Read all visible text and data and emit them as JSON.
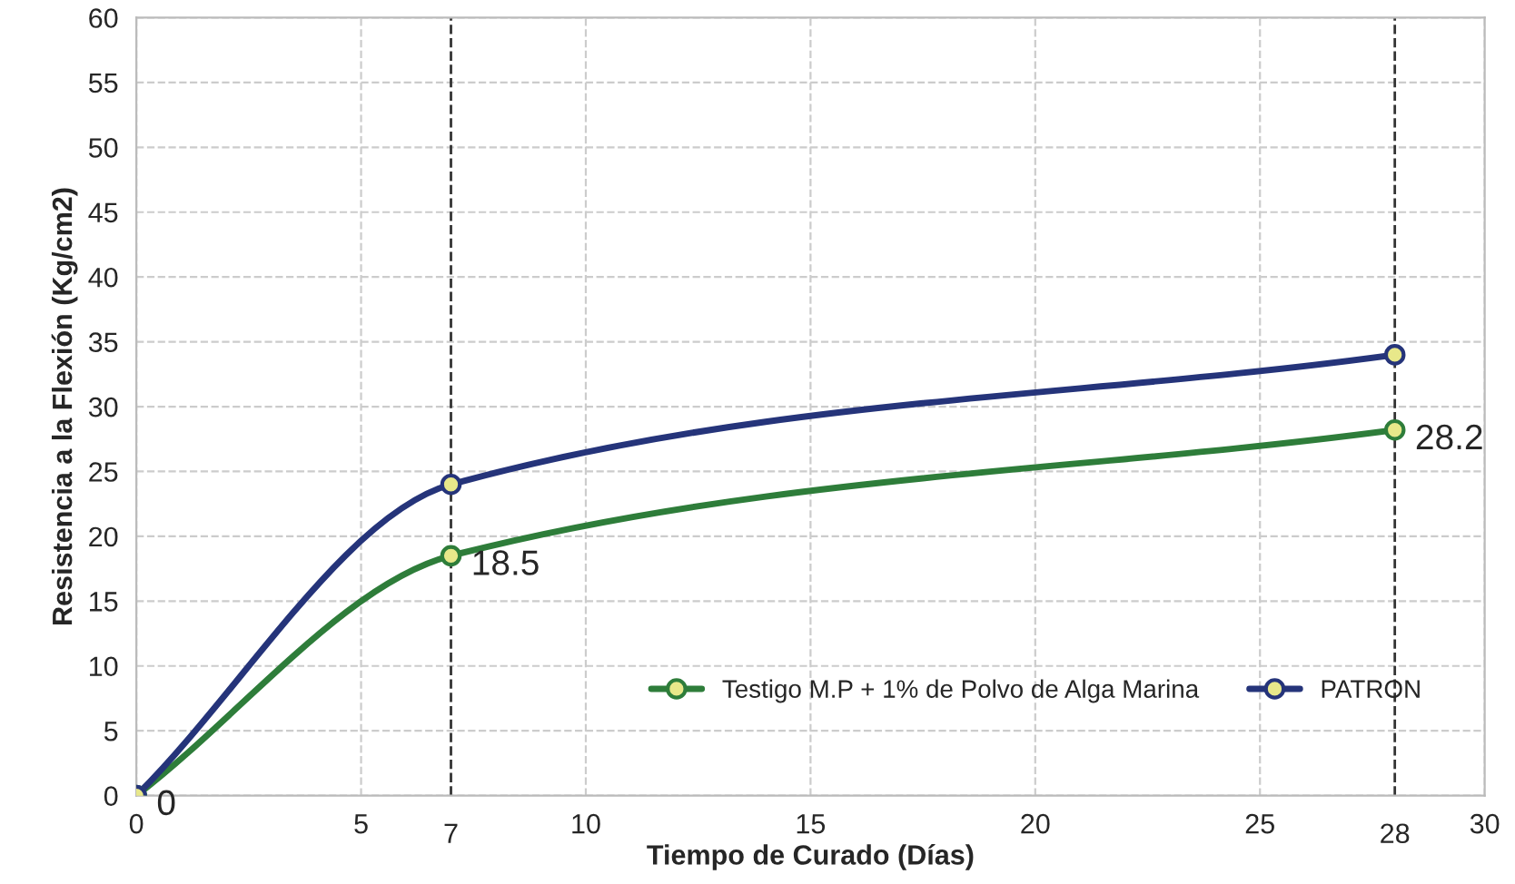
{
  "chart_data": {
    "type": "line",
    "xlabel": "Tiempo de Curado (Días)",
    "ylabel": "Resistencia a la Flexión (Kg/cm2)",
    "x": [
      0,
      7,
      28
    ],
    "series": [
      {
        "name": "Testigo M.P + 1% de Polvo de Alga Marina",
        "color": "#2e7d3a",
        "values": [
          0,
          18.5,
          28.2
        ],
        "value_labels": [
          "0",
          "18.5",
          "28.2"
        ]
      },
      {
        "name": "PATRON",
        "color": "#25347a",
        "values": [
          0,
          24,
          34
        ]
      }
    ],
    "xlim": [
      0,
      30
    ],
    "xticks": [
      0,
      5,
      10,
      15,
      20,
      25,
      30
    ],
    "ylim": [
      0,
      60
    ],
    "yticks": [
      0,
      5,
      10,
      15,
      20,
      25,
      30,
      35,
      40,
      45,
      50,
      55,
      60
    ],
    "ref_lines": [
      {
        "axis": "x",
        "value": 7,
        "label": "7",
        "color": "#333333",
        "line_style": "dashed"
      },
      {
        "axis": "x",
        "value": 28,
        "label": "28",
        "color": "#333333",
        "line_style": "dashed"
      }
    ],
    "grid": true,
    "legend": "bottom right",
    "marker": "circle",
    "line_style": "solid"
  }
}
